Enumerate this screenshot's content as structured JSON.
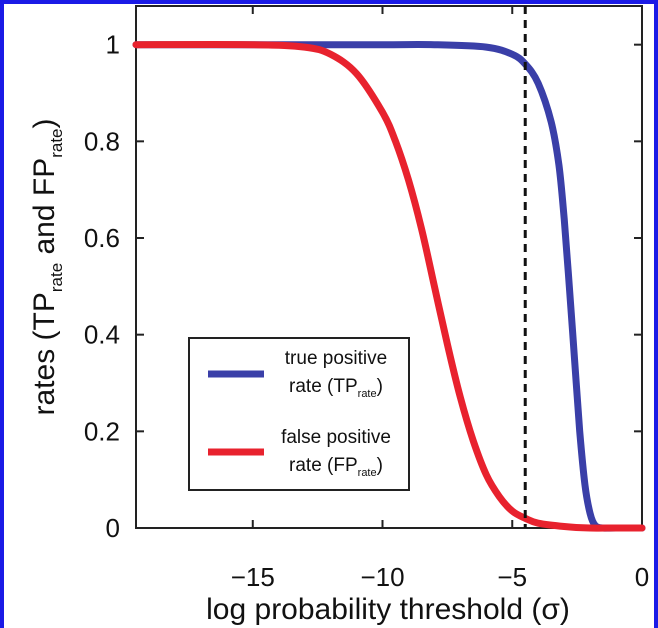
{
  "chart_data": {
    "type": "line",
    "xlabel": "log probability threshold (σ)",
    "ylabel": "rates (TP_rate and FP_rate)",
    "xlim": [
      -19.5,
      0
    ],
    "ylim": [
      0,
      1.08
    ],
    "x_ticks": [
      -15,
      -10,
      -5,
      0
    ],
    "x_tick_labels": [
      "−15",
      "−10",
      "−5",
      "0"
    ],
    "y_ticks": [
      0,
      0.2,
      0.4,
      0.6,
      0.8,
      1
    ],
    "y_tick_labels": [
      "0",
      "0.2",
      "0.4",
      "0.6",
      "0.8",
      "1"
    ],
    "grid": false,
    "legend_position": "lower-left",
    "threshold_line": {
      "x": -4.5,
      "style": "dashed"
    },
    "series": [
      {
        "name": "true positive rate (TP_rate)",
        "legend_main": "true positive",
        "legend_line2": "rate (TP",
        "legend_sub": "rate",
        "legend_close": ")",
        "color": "#3a3fa8",
        "x": [
          -19.5,
          -14,
          -10,
          -8,
          -6,
          -5,
          -4.5,
          -4,
          -3.5,
          -3.2,
          -3.0,
          -2.8,
          -2.6,
          -2.4,
          -2.2,
          -2.0,
          -1.8,
          -1.5,
          -1.0,
          0
        ],
        "y": [
          1.0,
          1.0,
          1.0,
          1.0,
          0.995,
          0.98,
          0.96,
          0.92,
          0.84,
          0.75,
          0.64,
          0.5,
          0.35,
          0.2,
          0.09,
          0.03,
          0.005,
          0.0,
          0.0,
          0.0
        ]
      },
      {
        "name": "false positive rate (FP_rate)",
        "legend_main": "false positive",
        "legend_line2": "rate (FP",
        "legend_sub": "rate",
        "legend_close": ")",
        "color": "#e8222e",
        "x": [
          -19.5,
          -15,
          -13,
          -12,
          -11,
          -10,
          -9.5,
          -9,
          -8.5,
          -8,
          -7.5,
          -7,
          -6.5,
          -6,
          -5.5,
          -5,
          -4.5,
          -4,
          -3,
          -2,
          -1,
          0
        ],
        "y": [
          1.0,
          1.0,
          0.995,
          0.98,
          0.94,
          0.86,
          0.8,
          0.72,
          0.62,
          0.5,
          0.38,
          0.27,
          0.18,
          0.11,
          0.065,
          0.035,
          0.02,
          0.01,
          0.003,
          0.0,
          0.0,
          0.0
        ]
      }
    ]
  }
}
